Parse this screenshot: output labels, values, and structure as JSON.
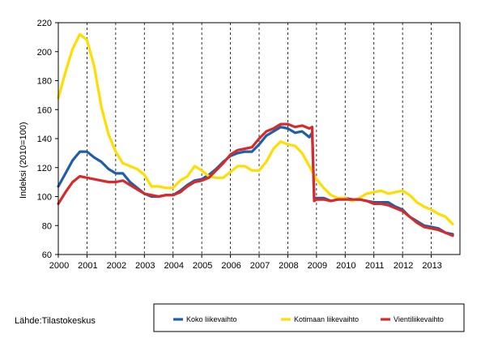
{
  "chart_data": {
    "type": "line",
    "title": "",
    "xlabel": "",
    "ylabel": "Indeksi (2010=100)",
    "xlim": [
      2000,
      2014
    ],
    "ylim": [
      60,
      220
    ],
    "yticks": [
      60,
      80,
      100,
      120,
      140,
      160,
      180,
      200,
      220
    ],
    "xticks": [
      "2000",
      "2001",
      "2002",
      "2003",
      "2004",
      "2005",
      "2006",
      "2007",
      "2008",
      "2009",
      "2010",
      "2011",
      "2012",
      "2013"
    ],
    "grid": "vertical dashed at each year",
    "legend_position": "bottom-right",
    "series": [
      {
        "name": "Koko liikevaihto",
        "color": "#1f5ea8",
        "points": [
          [
            2000.0,
            107
          ],
          [
            2000.25,
            116
          ],
          [
            2000.5,
            125
          ],
          [
            2000.75,
            131
          ],
          [
            2001.0,
            131
          ],
          [
            2001.25,
            127
          ],
          [
            2001.5,
            124
          ],
          [
            2001.75,
            119
          ],
          [
            2002.0,
            116
          ],
          [
            2002.25,
            116
          ],
          [
            2002.5,
            110
          ],
          [
            2002.75,
            106
          ],
          [
            2003.0,
            102
          ],
          [
            2003.25,
            100
          ],
          [
            2003.5,
            100
          ],
          [
            2003.75,
            101
          ],
          [
            2004.0,
            101
          ],
          [
            2004.25,
            104
          ],
          [
            2004.5,
            108
          ],
          [
            2004.75,
            111
          ],
          [
            2005.0,
            112
          ],
          [
            2005.25,
            115
          ],
          [
            2005.5,
            119
          ],
          [
            2005.75,
            124
          ],
          [
            2006.0,
            128
          ],
          [
            2006.25,
            130
          ],
          [
            2006.5,
            131
          ],
          [
            2006.75,
            131
          ],
          [
            2007.0,
            136
          ],
          [
            2007.25,
            142
          ],
          [
            2007.5,
            145
          ],
          [
            2007.75,
            148
          ],
          [
            2008.0,
            147
          ],
          [
            2008.25,
            144
          ],
          [
            2008.5,
            145
          ],
          [
            2008.75,
            141
          ],
          [
            2008.85,
            144
          ],
          [
            2008.92,
            99
          ],
          [
            2009.0,
            99
          ],
          [
            2009.25,
            99
          ],
          [
            2009.5,
            97
          ],
          [
            2009.75,
            98
          ],
          [
            2010.0,
            99
          ],
          [
            2010.25,
            98
          ],
          [
            2010.5,
            98
          ],
          [
            2010.75,
            97
          ],
          [
            2011.0,
            96
          ],
          [
            2011.25,
            96
          ],
          [
            2011.5,
            96
          ],
          [
            2011.75,
            93
          ],
          [
            2012.0,
            91
          ],
          [
            2012.25,
            86
          ],
          [
            2012.5,
            83
          ],
          [
            2012.75,
            80
          ],
          [
            2013.0,
            79
          ],
          [
            2013.25,
            78
          ],
          [
            2013.5,
            75
          ],
          [
            2013.75,
            74
          ]
        ]
      },
      {
        "name": "Kotimaan liikevaihto",
        "color": "#ffdd00",
        "points": [
          [
            2000.0,
            168
          ],
          [
            2000.25,
            186
          ],
          [
            2000.5,
            202
          ],
          [
            2000.75,
            212
          ],
          [
            2001.0,
            208
          ],
          [
            2001.25,
            190
          ],
          [
            2001.5,
            162
          ],
          [
            2001.75,
            143
          ],
          [
            2002.0,
            131
          ],
          [
            2002.25,
            123
          ],
          [
            2002.5,
            121
          ],
          [
            2002.75,
            119
          ],
          [
            2003.0,
            115
          ],
          [
            2003.25,
            107
          ],
          [
            2003.5,
            107
          ],
          [
            2003.75,
            106
          ],
          [
            2004.0,
            106
          ],
          [
            2004.25,
            111
          ],
          [
            2004.5,
            114
          ],
          [
            2004.75,
            121
          ],
          [
            2005.0,
            118
          ],
          [
            2005.25,
            114
          ],
          [
            2005.5,
            113
          ],
          [
            2005.75,
            113
          ],
          [
            2006.0,
            117
          ],
          [
            2006.25,
            121
          ],
          [
            2006.5,
            121
          ],
          [
            2006.75,
            118
          ],
          [
            2007.0,
            118
          ],
          [
            2007.25,
            124
          ],
          [
            2007.5,
            133
          ],
          [
            2007.75,
            138
          ],
          [
            2008.0,
            136
          ],
          [
            2008.25,
            135
          ],
          [
            2008.5,
            130
          ],
          [
            2008.75,
            121
          ],
          [
            2009.0,
            112
          ],
          [
            2009.25,
            106
          ],
          [
            2009.5,
            101
          ],
          [
            2009.75,
            99
          ],
          [
            2010.0,
            99
          ],
          [
            2010.25,
            97
          ],
          [
            2010.5,
            99
          ],
          [
            2010.75,
            102
          ],
          [
            2011.0,
            103
          ],
          [
            2011.25,
            104
          ],
          [
            2011.5,
            102
          ],
          [
            2011.75,
            103
          ],
          [
            2012.0,
            104
          ],
          [
            2012.25,
            101
          ],
          [
            2012.5,
            96
          ],
          [
            2012.75,
            93
          ],
          [
            2013.0,
            91
          ],
          [
            2013.25,
            88
          ],
          [
            2013.5,
            86
          ],
          [
            2013.75,
            81
          ]
        ]
      },
      {
        "name": "Vientiliikevaihto",
        "color": "#d72b2b",
        "points": [
          [
            2000.0,
            95
          ],
          [
            2000.25,
            103
          ],
          [
            2000.5,
            110
          ],
          [
            2000.75,
            114
          ],
          [
            2001.0,
            113
          ],
          [
            2001.25,
            112
          ],
          [
            2001.5,
            111
          ],
          [
            2001.75,
            110
          ],
          [
            2002.0,
            110
          ],
          [
            2002.25,
            111
          ],
          [
            2002.5,
            108
          ],
          [
            2002.75,
            105
          ],
          [
            2003.0,
            102
          ],
          [
            2003.25,
            101
          ],
          [
            2003.5,
            100
          ],
          [
            2003.75,
            101
          ],
          [
            2004.0,
            101
          ],
          [
            2004.25,
            103
          ],
          [
            2004.5,
            107
          ],
          [
            2004.75,
            110
          ],
          [
            2005.0,
            111
          ],
          [
            2005.25,
            113
          ],
          [
            2005.5,
            118
          ],
          [
            2005.75,
            123
          ],
          [
            2006.0,
            129
          ],
          [
            2006.25,
            132
          ],
          [
            2006.5,
            133
          ],
          [
            2006.75,
            134
          ],
          [
            2007.0,
            140
          ],
          [
            2007.25,
            145
          ],
          [
            2007.5,
            147
          ],
          [
            2007.75,
            150
          ],
          [
            2008.0,
            150
          ],
          [
            2008.25,
            148
          ],
          [
            2008.5,
            149
          ],
          [
            2008.75,
            147
          ],
          [
            2008.85,
            148
          ],
          [
            2008.92,
            97
          ],
          [
            2009.0,
            98
          ],
          [
            2009.25,
            98
          ],
          [
            2009.5,
            97
          ],
          [
            2009.75,
            98
          ],
          [
            2010.0,
            98
          ],
          [
            2010.25,
            98
          ],
          [
            2010.5,
            98
          ],
          [
            2010.75,
            97
          ],
          [
            2011.0,
            95
          ],
          [
            2011.25,
            95
          ],
          [
            2011.5,
            94
          ],
          [
            2011.75,
            92
          ],
          [
            2012.0,
            90
          ],
          [
            2012.25,
            86
          ],
          [
            2012.5,
            82
          ],
          [
            2012.75,
            79
          ],
          [
            2013.0,
            78
          ],
          [
            2013.25,
            77
          ],
          [
            2013.5,
            75
          ],
          [
            2013.75,
            73
          ]
        ]
      }
    ]
  },
  "source_text": "Lähde:Tilastokeskus"
}
